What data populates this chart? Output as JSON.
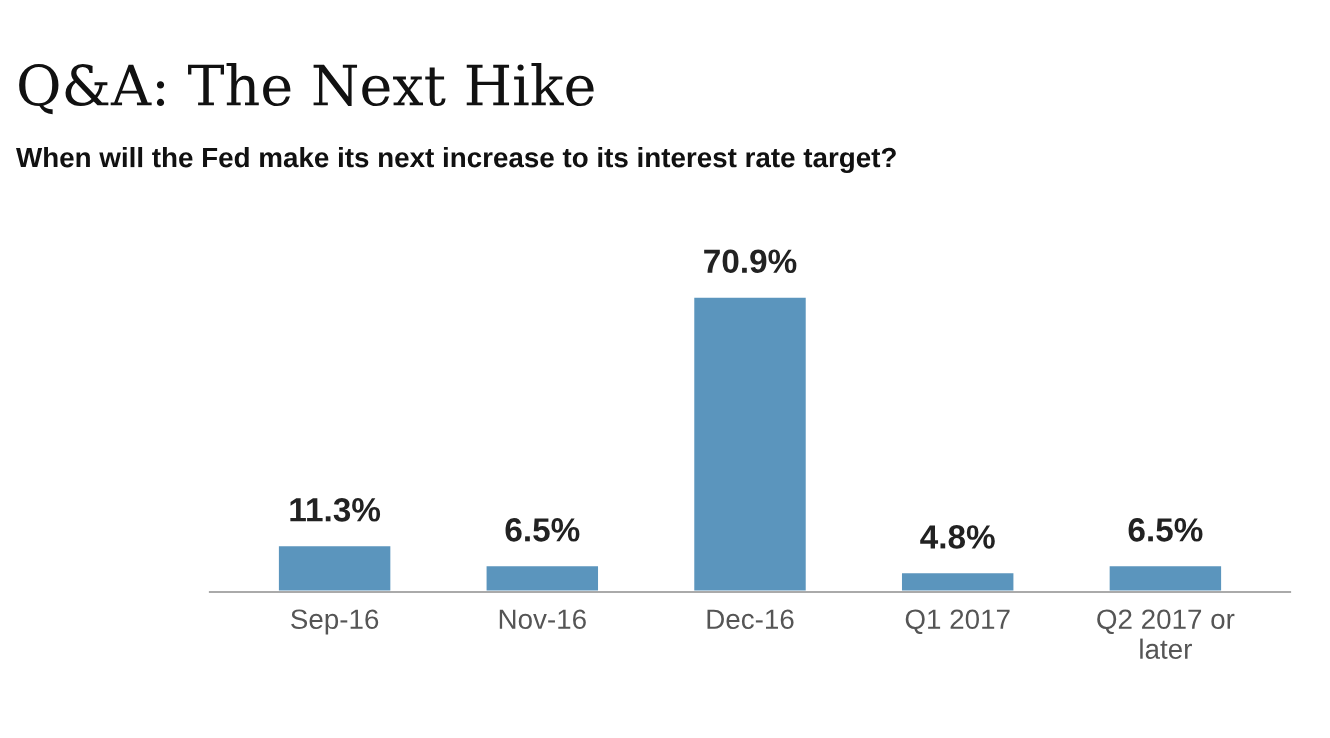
{
  "chart_data": {
    "type": "bar",
    "title": "Q&A: The Next Hike",
    "subtitle": "When will the Fed make its next increase to its interest rate target?",
    "categories": [
      "Sep-16",
      "Nov-16",
      "Dec-16",
      "Q1 2017",
      "Q2 2017 or\nlater"
    ],
    "values": [
      11.3,
      6.5,
      70.9,
      4.8,
      6.5
    ],
    "value_labels": [
      "11.3%",
      "6.5%",
      "70.9%",
      "4.8%",
      "6.5%"
    ],
    "color": "#5b95bd",
    "grid": false,
    "legend": false
  }
}
